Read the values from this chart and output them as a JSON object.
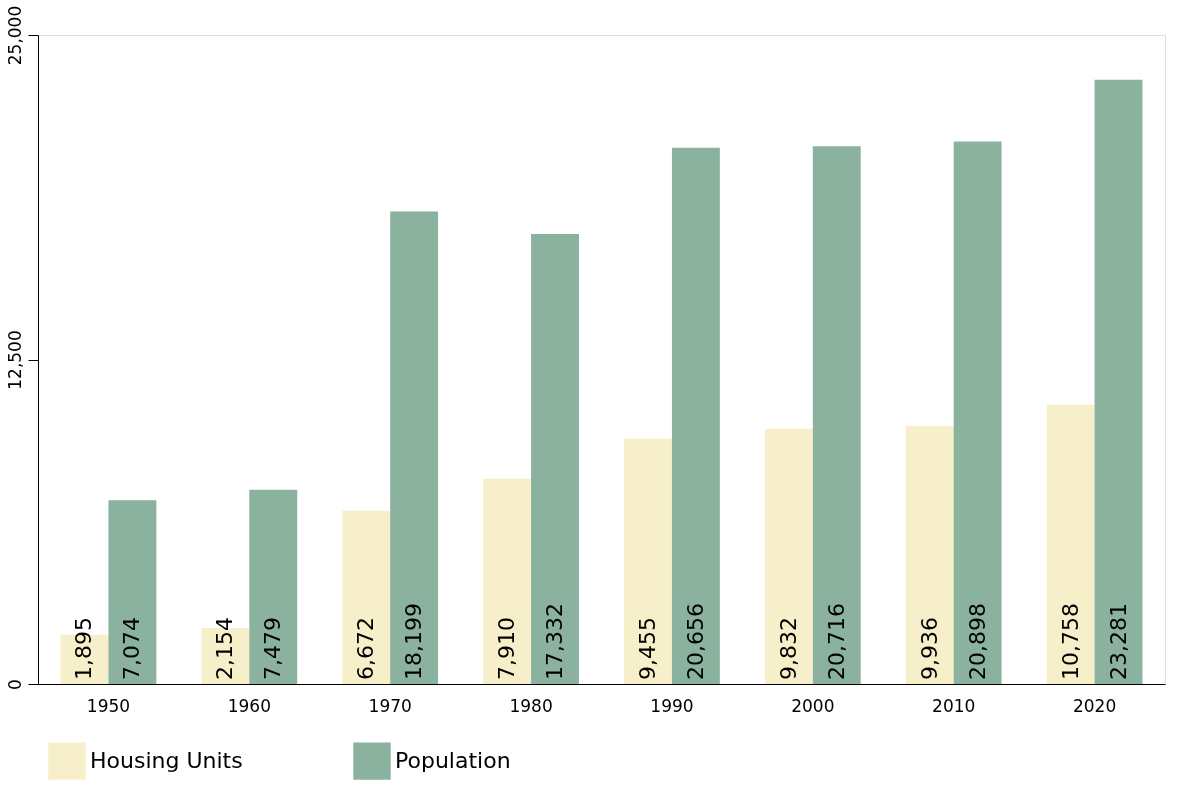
{
  "chart_data": {
    "type": "bar",
    "categories": [
      "1950",
      "1960",
      "1970",
      "1980",
      "1990",
      "2000",
      "2010",
      "2020"
    ],
    "series": [
      {
        "name": "Housing Units",
        "color": "#f7efca",
        "values": [
          1895,
          2154,
          6672,
          7910,
          9455,
          9832,
          9936,
          10758
        ],
        "value_labels": [
          "1,895",
          "2,154",
          "6,672",
          "7,910",
          "9,455",
          "9,832",
          "9,936",
          "10,758"
        ]
      },
      {
        "name": "Population",
        "color": "#8ab29e",
        "values": [
          7074,
          7479,
          18199,
          17332,
          20656,
          20716,
          20898,
          23281
        ],
        "value_labels": [
          "7,074",
          "7,479",
          "18,199",
          "17,332",
          "20,656",
          "20,716",
          "20,898",
          "23,281"
        ]
      }
    ],
    "ylim": [
      0,
      25000
    ],
    "yticks": [
      {
        "value": 0,
        "label": "0"
      },
      {
        "value": 12500,
        "label": "12,500"
      },
      {
        "value": 25000,
        "label": "25,000"
      }
    ],
    "grid": false,
    "legend": "bottom"
  }
}
